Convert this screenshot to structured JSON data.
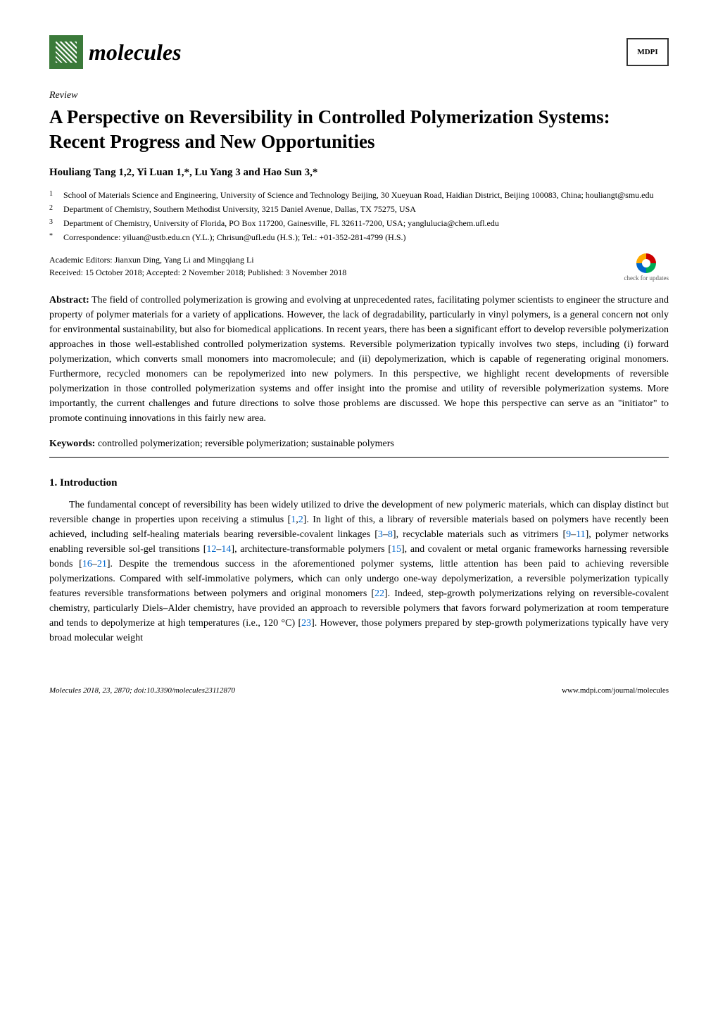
{
  "header": {
    "journal_name": "molecules",
    "publisher_logo": "MDPI"
  },
  "article": {
    "type_label": "Review",
    "title": "A Perspective on Reversibility in Controlled Polymerization Systems: Recent Progress and New Opportunities",
    "authors": "Houliang Tang 1,2, Yi Luan 1,*, Lu Yang 3 and Hao Sun 3,*",
    "affiliations": [
      {
        "num": "1",
        "text": "School of Materials Science and Engineering, University of Science and Technology Beijing, 30 Xueyuan Road, Haidian District, Beijing 100083, China; houliangt@smu.edu"
      },
      {
        "num": "2",
        "text": "Department of Chemistry, Southern Methodist University, 3215 Daniel Avenue, Dallas, TX 75275, USA"
      },
      {
        "num": "3",
        "text": "Department of Chemistry, University of Florida, PO Box 117200, Gainesville, FL 32611-7200, USA; yanglulucia@chem.ufl.edu"
      },
      {
        "num": "*",
        "text": "Correspondence: yiluan@ustb.edu.cn (Y.L.); Chrisun@ufl.edu (H.S.); Tel.: +01-352-281-4799 (H.S.)"
      }
    ],
    "editors": "Academic Editors: Jianxun Ding, Yang Li and Mingqiang Li",
    "dates": "Received: 15 October 2018; Accepted: 2 November 2018; Published: 3 November 2018",
    "check_updates": "check for updates",
    "abstract_label": "Abstract:",
    "abstract_text": " The field of controlled polymerization is growing and evolving at unprecedented rates, facilitating polymer scientists to engineer the structure and property of polymer materials for a variety of applications. However, the lack of degradability, particularly in vinyl polymers, is a general concern not only for environmental sustainability, but also for biomedical applications. In recent years, there has been a significant effort to develop reversible polymerization approaches in those well-established controlled polymerization systems. Reversible polymerization typically involves two steps, including (i) forward polymerization, which converts small monomers into macromolecule; and (ii) depolymerization, which is capable of regenerating original monomers. Furthermore, recycled monomers can be repolymerized into new polymers. In this perspective, we highlight recent developments of reversible polymerization in those controlled polymerization systems and offer insight into the promise and utility of reversible polymerization systems. More importantly, the current challenges and future directions to solve those problems are discussed. We hope this perspective can serve as an \"initiator\" to promote continuing innovations in this fairly new area.",
    "keywords_label": "Keywords:",
    "keywords_text": " controlled polymerization; reversible polymerization; sustainable polymers"
  },
  "section": {
    "heading": "1. Introduction",
    "body_pre": "The fundamental concept of reversibility has been widely utilized to drive the development of new polymeric materials, which can display distinct but reversible change in properties upon receiving a stimulus [",
    "ref1": "1",
    "ref2": "2",
    "body_2": "]. In light of this, a library of reversible materials based on polymers have recently been achieved, including self-healing materials bearing reversible-covalent linkages [",
    "ref3": "3",
    "ref4": "8",
    "body_3": "], recyclable materials such as vitrimers [",
    "ref5": "9",
    "ref6": "11",
    "body_4": "], polymer networks enabling reversible sol-gel transitions [",
    "ref7": "12",
    "ref8": "14",
    "body_5": "], architecture-transformable polymers [",
    "ref9": "15",
    "body_6": "], and covalent or metal organic frameworks harnessing reversible bonds [",
    "ref10": "16",
    "ref11": "21",
    "body_7": "]. Despite the tremendous success in the aforementioned polymer systems, little attention has been paid to achieving reversible polymerizations. Compared with self-immolative polymers, which can only undergo one-way depolymerization, a reversible polymerization typically features reversible transformations between polymers and original monomers [",
    "ref12": "22",
    "body_8": "]. Indeed, step-growth polymerizations relying on reversible-covalent chemistry, particularly Diels–Alder chemistry, have provided an approach to reversible polymers that favors forward polymerization at room temperature and tends to depolymerize at high temperatures (i.e., 120 °C) [",
    "ref13": "23",
    "body_9": "]. However, those polymers prepared by step-growth polymerizations typically have very broad molecular weight"
  },
  "footer": {
    "left": "Molecules 2018, 23, 2870; doi:10.3390/molecules23112870",
    "right": "www.mdpi.com/journal/molecules"
  }
}
